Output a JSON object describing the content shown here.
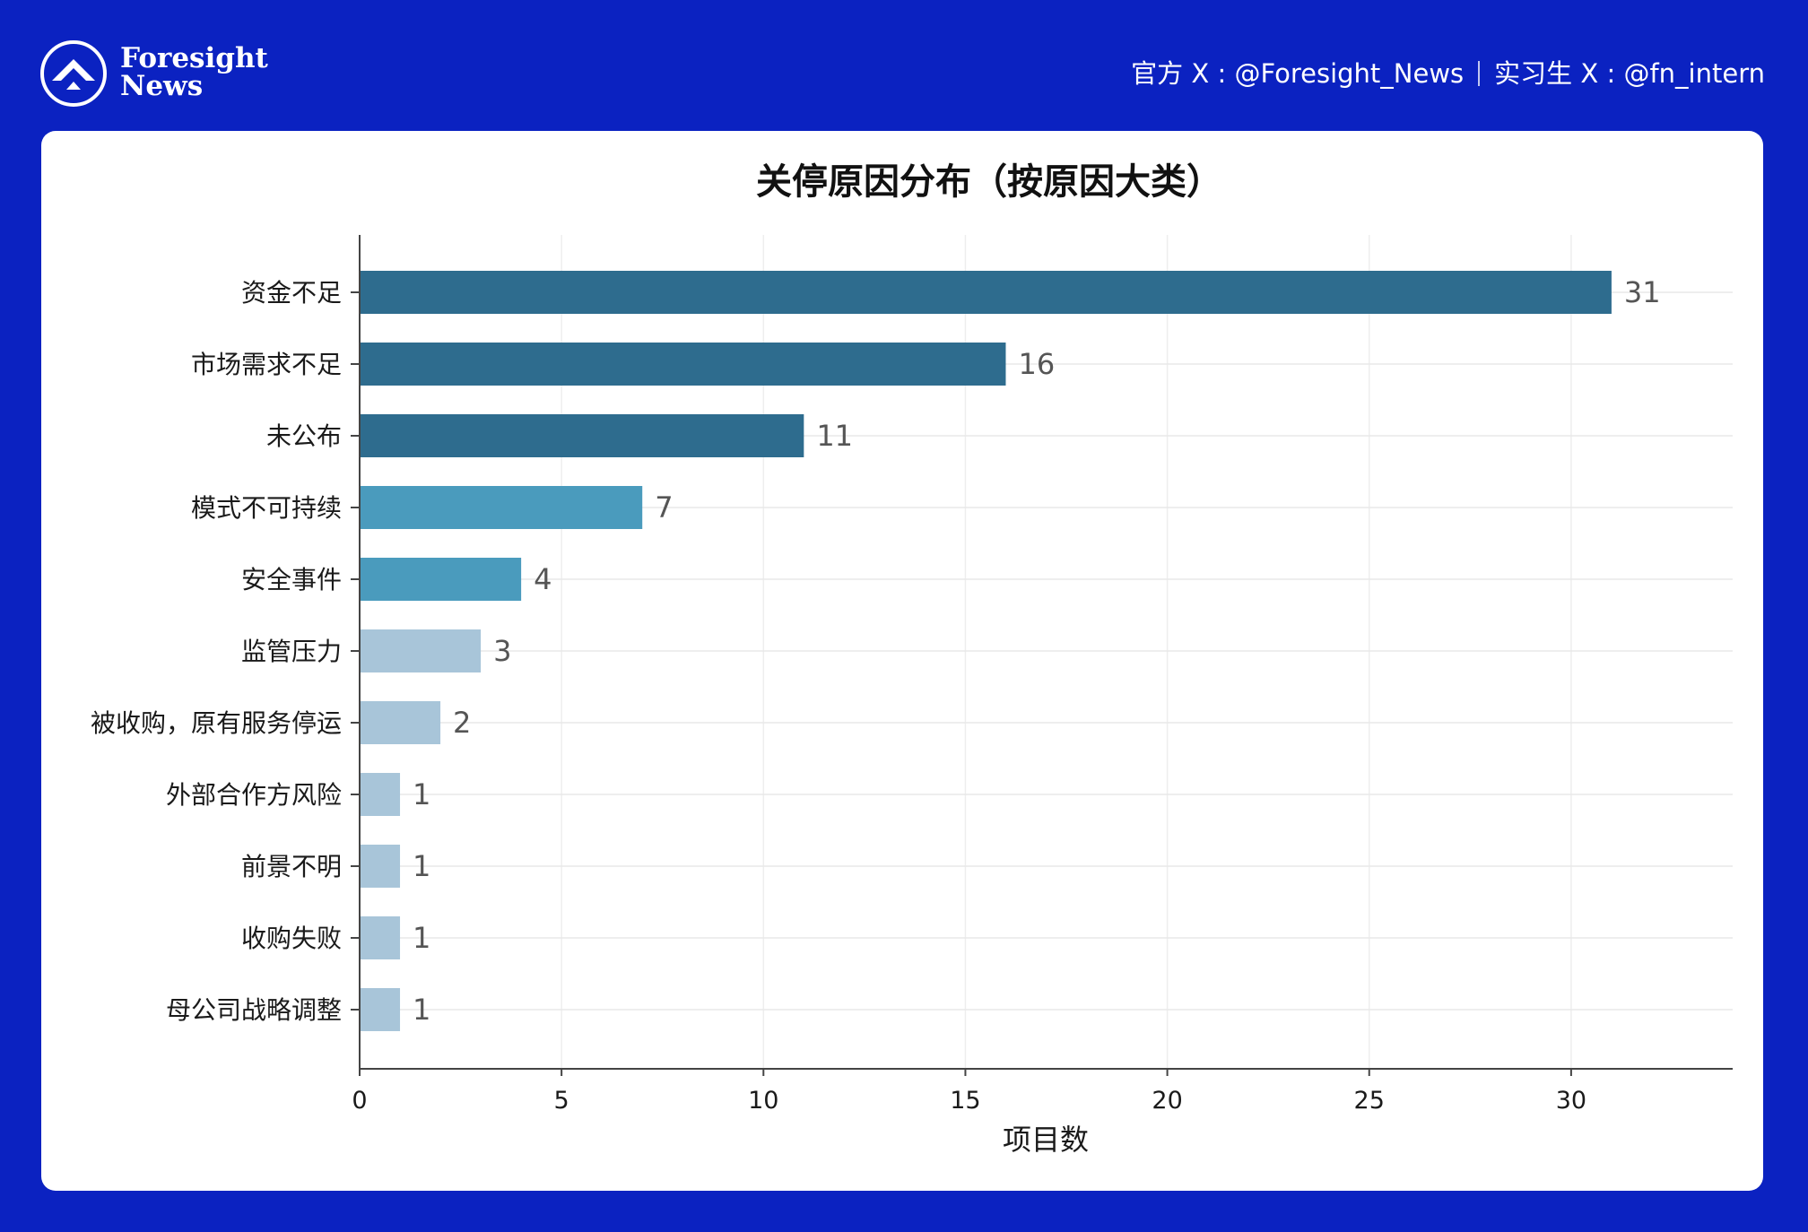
{
  "brand": {
    "name_line1": "Foresight",
    "name_line2": "News",
    "official_handle": "官方 X : @Foresight_News",
    "intern_handle": "实习生 X : @fn_intern",
    "background_color": "#0b22c1"
  },
  "chart_data": {
    "type": "bar",
    "orientation": "horizontal",
    "title": "关停原因分布（按原因大类）",
    "xlabel": "项目数",
    "ylabel": "",
    "xlim": [
      0,
      34
    ],
    "xticks": [
      0,
      5,
      10,
      15,
      20,
      25,
      30
    ],
    "grid": true,
    "categories": [
      "资金不足",
      "市场需求不足",
      "未公布",
      "模式不可持续",
      "安全事件",
      "监管压力",
      "被收购，原有服务停运",
      "外部合作方风险",
      "前景不明",
      "收购失败",
      "母公司战略调整"
    ],
    "values": [
      31,
      16,
      11,
      7,
      4,
      3,
      2,
      1,
      1,
      1,
      1
    ],
    "colors": [
      "#2e6c8e",
      "#2e6c8e",
      "#2e6c8e",
      "#4a9bbd",
      "#4a9bbd",
      "#a8c5d9",
      "#a8c5d9",
      "#a8c5d9",
      "#a8c5d9",
      "#a8c5d9",
      "#a8c5d9"
    ],
    "data_labels": true
  }
}
